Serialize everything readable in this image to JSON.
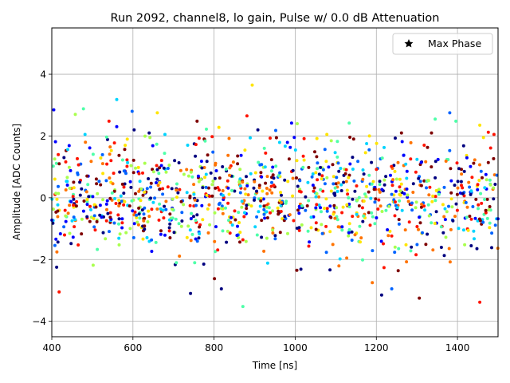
{
  "chart_data": {
    "type": "scatter",
    "title": "Run 2092, channel8, lo gain, Pulse w/ 0.0 dB Attenuation",
    "xlabel": "Time [ns]",
    "ylabel": "Amplitude [ADC Counts]",
    "xlim": [
      400,
      1500
    ],
    "ylim": [
      -4.5,
      5.5
    ],
    "xticks": [
      400,
      600,
      800,
      1000,
      1200,
      1400
    ],
    "yticks": [
      -4,
      -2,
      0,
      2,
      4
    ],
    "grid": true,
    "legend": {
      "position": "top-right",
      "entries": [
        {
          "label": "Max Phase",
          "marker": "star"
        }
      ]
    },
    "colormap": "jet",
    "palette": [
      "#00007f",
      "#0000ff",
      "#0063ff",
      "#00d4ff",
      "#4effa9",
      "#a9ff4e",
      "#ffe500",
      "#ff7300",
      "#ff1400",
      "#7f0000"
    ],
    "series": [
      {
        "points": [
          [
            405,
            2.85
          ],
          [
            412,
            -2.25
          ],
          [
            418,
            -3.05
          ],
          [
            430,
            1.3
          ],
          [
            458,
            2.7
          ],
          [
            478,
            2.88
          ],
          [
            482,
            2.05
          ],
          [
            541,
            2.48
          ],
          [
            560,
            3.18
          ],
          [
            560,
            2.3
          ],
          [
            598,
            2.8
          ],
          [
            603,
            2.2
          ],
          [
            640,
            2.1
          ],
          [
            660,
            2.75
          ],
          [
            679,
            2.05
          ],
          [
            742,
            -3.1
          ],
          [
            758,
            2.48
          ],
          [
            781,
            2.22
          ],
          [
            801,
            -2.62
          ],
          [
            812,
            2.28
          ],
          [
            818,
            -2.95
          ],
          [
            871,
            -3.52
          ],
          [
            881,
            2.65
          ],
          [
            894,
            3.65
          ],
          [
            908,
            2.2
          ],
          [
            952,
            2.18
          ],
          [
            991,
            2.42
          ],
          [
            1005,
            2.4
          ],
          [
            1004,
            -2.35
          ],
          [
            1078,
            2.05
          ],
          [
            1133,
            2.42
          ],
          [
            1183,
            2.0
          ],
          [
            1190,
            -2.75
          ],
          [
            1213,
            -3.15
          ],
          [
            1238,
            -2.95
          ],
          [
            1262,
            2.1
          ],
          [
            1306,
            -3.25
          ],
          [
            1336,
            2.1
          ],
          [
            1345,
            2.55
          ],
          [
            1381,
            2.75
          ],
          [
            1396,
            2.48
          ],
          [
            1455,
            2.35
          ],
          [
            1464,
            1.95
          ],
          [
            1455,
            -3.38
          ],
          [
            1476,
            2.12
          ],
          [
            1490,
            2.05
          ]
        ]
      }
    ]
  }
}
